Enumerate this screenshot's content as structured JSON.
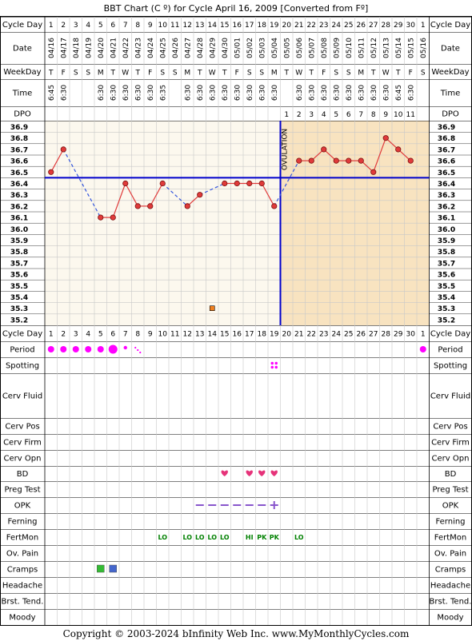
{
  "title": "BBT Chart (C º) for Cycle April 16, 2009  [Converted from Fº]",
  "copyright": "Copyright © 2003-2024 bInfinity Web Inc.    www.MyMonthlyCycles.com",
  "row_labels": {
    "cycle_day": "Cycle Day",
    "date": "Date",
    "weekday": "WeekDay",
    "time": "Time",
    "dpo": "DPO",
    "period": "Period",
    "spotting": "Spotting",
    "cerv_fluid": "Cerv Fluid",
    "cerv_pos": "Cerv Pos",
    "cerv_firm": "Cerv Firm",
    "cerv_opn": "Cerv Opn",
    "bd": "BD",
    "preg_test": "Preg Test",
    "opk": "OPK",
    "ferning": "Ferning",
    "fertmon": "FertMon",
    "ov_pain": "Ov. Pain",
    "cramps": "Cramps",
    "headache": "Headache",
    "brst_tend": "Brst. Tend.",
    "moody": "Moody"
  },
  "ovulation_label": "OVULATION",
  "colors": {
    "temp_line": "#e03a3a",
    "coverline": "#0000cc",
    "ovulation_line": "#0000cc",
    "follicular_bg": "#fcf8ee",
    "luteal_bg": "#f8e3c0",
    "grid": "#c8c8c8",
    "period": "#ff00ff",
    "bd_heart": "#e6337a",
    "fertmon": "#008000",
    "opk": "#8855cc"
  },
  "chart_data": {
    "type": "line",
    "title": "BBT Chart (C º) for Cycle April 16, 2009  [Converted from Fº]",
    "y_ticks": [
      "36.9",
      "36.8",
      "36.7",
      "36.6",
      "36.5",
      "36.4",
      "36.3",
      "36.2",
      "36.1",
      "36.0",
      "35.9",
      "35.8",
      "35.7",
      "35.6",
      "35.5",
      "35.4",
      "35.3",
      "35.2"
    ],
    "ylim": [
      35.2,
      36.9
    ],
    "cycle_days": [
      "1",
      "2",
      "3",
      "4",
      "5",
      "6",
      "7",
      "8",
      "9",
      "10",
      "11",
      "12",
      "13",
      "14",
      "15",
      "16",
      "17",
      "18",
      "19",
      "20",
      "21",
      "22",
      "23",
      "24",
      "25",
      "26",
      "27",
      "28",
      "29",
      "30",
      "1"
    ],
    "dates": [
      "04/16",
      "04/17",
      "04/18",
      "04/19",
      "04/20",
      "04/21",
      "04/22",
      "04/23",
      "04/24",
      "04/25",
      "04/26",
      "04/27",
      "04/28",
      "04/29",
      "04/30",
      "05/01",
      "05/02",
      "05/03",
      "05/04",
      "05/05",
      "05/06",
      "05/07",
      "05/08",
      "05/09",
      "05/10",
      "05/11",
      "05/12",
      "05/13",
      "05/14",
      "05/15",
      "05/16"
    ],
    "weekdays": [
      "T",
      "F",
      "S",
      "S",
      "M",
      "T",
      "W",
      "T",
      "F",
      "S",
      "S",
      "M",
      "T",
      "W",
      "T",
      "F",
      "S",
      "S",
      "M",
      "T",
      "W",
      "T",
      "F",
      "S",
      "S",
      "M",
      "T",
      "W",
      "T",
      "F",
      "S"
    ],
    "times": [
      "6:45",
      "6:30",
      "",
      "",
      "6:30",
      "6:30",
      "6:30",
      "6:30",
      "6:30",
      "6:35",
      "",
      "6:30",
      "6:30",
      "6:30",
      "6:30",
      "6:30",
      "6:30",
      "6:30",
      "6:30",
      "",
      "6:30",
      "6:30",
      "6:30",
      "6:30",
      "6:30",
      "6:30",
      "6:30",
      "6:30",
      "6:45",
      "6:30",
      ""
    ],
    "dpo": [
      "",
      "",
      "",
      "",
      "",
      "",
      "",
      "",
      "",
      "",
      "",
      "",
      "",
      "",
      "",
      "",
      "",
      "",
      "",
      "1",
      "2",
      "3",
      "4",
      "5",
      "6",
      "7",
      "8",
      "9",
      "10",
      "11",
      ""
    ],
    "temps": [
      36.5,
      36.7,
      null,
      null,
      36.1,
      36.1,
      36.4,
      36.2,
      36.2,
      36.4,
      null,
      36.2,
      36.3,
      null,
      36.4,
      36.4,
      36.4,
      36.4,
      36.2,
      null,
      36.6,
      36.6,
      36.7,
      36.6,
      36.6,
      36.6,
      36.5,
      36.8,
      36.7,
      36.6,
      null
    ],
    "excluded_temp": {
      "day_index": 13,
      "value": 35.3
    },
    "coverline": 36.45,
    "ovulation_day_index": 18,
    "series": [
      {
        "values": [
          36.5,
          36.7,
          null,
          null,
          36.1,
          36.1,
          36.4,
          36.2,
          36.2,
          36.4,
          null,
          36.2,
          36.3,
          null,
          36.4,
          36.4,
          36.4,
          36.4,
          36.2,
          null,
          36.6,
          36.6,
          36.7,
          36.6,
          36.6,
          36.6,
          36.5,
          36.8,
          36.7,
          36.6,
          null
        ]
      }
    ]
  },
  "period": [
    "medium",
    "medium",
    "medium",
    "medium",
    "medium",
    "heavy",
    "light",
    "spotting",
    "",
    "",
    "",
    "",
    "",
    "",
    "",
    "",
    "",
    "",
    "",
    "",
    "",
    "",
    "",
    "",
    "",
    "",
    "",
    "",
    "",
    "",
    "medium"
  ],
  "spotting": [
    18
  ],
  "bd": [
    14,
    16,
    17,
    18
  ],
  "opk": [
    "",
    "",
    "",
    "",
    "",
    "",
    "",
    "",
    "",
    "",
    "",
    "",
    "neg",
    "neg",
    "neg",
    "neg",
    "neg",
    "neg",
    "pos",
    "",
    "",
    "",
    "",
    "",
    "",
    "",
    "",
    "",
    "",
    "",
    ""
  ],
  "fertmon": [
    "",
    "",
    "",
    "",
    "",
    "",
    "",
    "",
    "",
    "LO",
    "",
    "LO",
    "LO",
    "LO",
    "LO",
    "",
    "HI",
    "PK",
    "PK",
    "",
    "LO",
    "",
    "",
    "",
    "",
    "",
    "",
    "",
    "",
    "",
    ""
  ],
  "cramps": {
    "5": "#33bb33",
    "6": "#4466cc"
  }
}
